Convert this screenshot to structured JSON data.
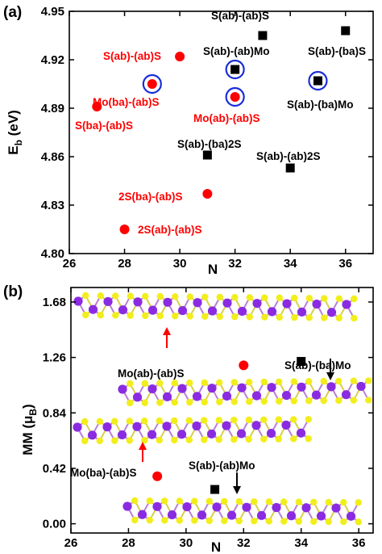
{
  "chart_data": [
    {
      "panel_label": "(a)",
      "type": "scatter",
      "xlabel": "N",
      "ylabel": "E",
      "ylabel_sub": "b",
      "ylabel_unit": " (eV)",
      "xlim": [
        26,
        37
      ],
      "ylim": [
        4.8,
        4.95
      ],
      "xticks": [
        26,
        28,
        30,
        32,
        34,
        36
      ],
      "yticks": [
        4.8,
        4.83,
        4.86,
        4.89,
        4.92,
        4.95
      ],
      "ytick_labels": [
        "4.80",
        "4.83",
        "4.86",
        "4.89",
        "4.92",
        "4.95"
      ],
      "grid": false,
      "series": [
        {
          "marker": "circle",
          "color": "#ff0000",
          "points": [
            {
              "x": 27,
              "y": 4.891,
              "label": "S(ba)-(ab)S"
            },
            {
              "x": 28,
              "y": 4.815,
              "label": "2S(ab)-(ab)S"
            },
            {
              "x": 29,
              "y": 4.905,
              "label": "Mo(ba)-(ab)S",
              "circled": true
            },
            {
              "x": 30,
              "y": 4.922,
              "label": "S(ab)-(ab)S"
            },
            {
              "x": 31,
              "y": 4.837,
              "label": "2S(ba)-(ab)S"
            },
            {
              "x": 32,
              "y": 4.897,
              "label": "Mo(ab)-(ab)S",
              "circled": true
            }
          ]
        },
        {
          "marker": "square",
          "color": "#000000",
          "points": [
            {
              "x": 31,
              "y": 4.861,
              "label": "S(ab)-(ba)2S"
            },
            {
              "x": 32,
              "y": 4.914,
              "label": "S(ab)-(ab)Mo",
              "circled": true
            },
            {
              "x": 33,
              "y": 4.935,
              "label": "S(ab)-(ab)S"
            },
            {
              "x": 34,
              "y": 4.853,
              "label": "S(ab)-(ab)2S"
            },
            {
              "x": 35,
              "y": 4.907,
              "label": "S(ab)-(ba)Mo",
              "circled": true
            },
            {
              "x": 36,
              "y": 4.938,
              "label": "S(ab)-(ba)S"
            }
          ]
        }
      ]
    },
    {
      "panel_label": "(b)",
      "type": "scatter",
      "xlabel": "N",
      "ylabel": "MM (μ",
      "ylabel_sub": "B",
      "ylabel_unit": ")",
      "xlim": [
        26,
        36.5
      ],
      "ylim": [
        -0.07,
        1.79
      ],
      "xticks": [
        26,
        28,
        30,
        32,
        34,
        36
      ],
      "yticks": [
        0.0,
        0.42,
        0.84,
        1.26,
        1.68
      ],
      "ytick_labels": [
        "0.00",
        "0.42",
        "0.84",
        "1.26",
        "1.68"
      ],
      "grid": false,
      "series": [
        {
          "marker": "circle",
          "color": "#ff0000",
          "points": [
            {
              "x": 29,
              "y": 0.36,
              "label": "Mo(ba)-(ab)S"
            },
            {
              "x": 32,
              "y": 1.2,
              "label": "Mo(ab)-(ab)S"
            }
          ]
        },
        {
          "marker": "square",
          "color": "#000000",
          "points": [
            {
              "x": 31,
              "y": 0.26,
              "label": "S(ab)-(ab)Mo"
            },
            {
              "x": 34,
              "y": 1.23,
              "label": "S(ab)-(ba)Mo"
            }
          ]
        }
      ],
      "atom_colors": {
        "Mo": "#8a2be2",
        "S": "#f2ee1c"
      }
    }
  ]
}
